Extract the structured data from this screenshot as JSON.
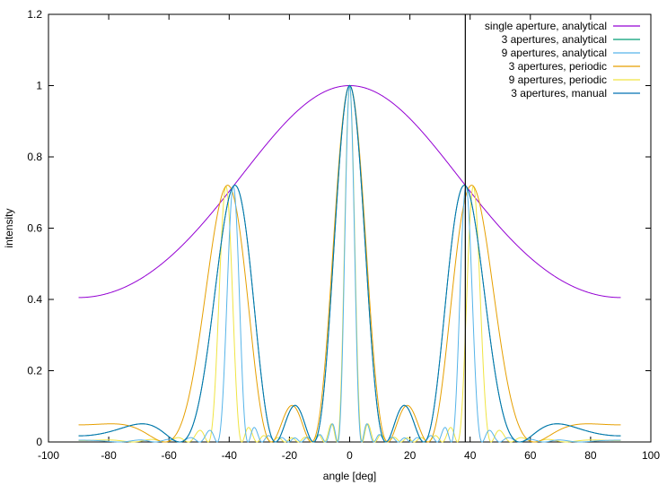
{
  "chart_data": {
    "type": "line",
    "title": "",
    "xlabel": "angle [deg]",
    "ylabel": "intensity",
    "xlim": [
      -100,
      100
    ],
    "ylim": [
      0,
      1.2
    ],
    "xticks": [
      "-100",
      "-80",
      "-60",
      "-40",
      "-20",
      "0",
      "20",
      "40",
      "60",
      "80",
      "100"
    ],
    "yticks": [
      "0",
      "0.2",
      "0.4",
      "0.6",
      "0.8",
      "1",
      "1.2"
    ],
    "grid": false,
    "legend_position": "top-right",
    "vertical_marker_x": 38.4,
    "model": {
      "aperture_width_over_wavelength": 0.5,
      "slit_spacing_over_wavelength": 1.6,
      "angle_range": [
        -90,
        90
      ]
    },
    "series": [
      {
        "name": "single aperture, analytical",
        "color": "#9400d3",
        "kind": "single"
      },
      {
        "name": "3 apertures, analytical",
        "color": "#009e73",
        "kind": "multi",
        "n": 3
      },
      {
        "name": "9 apertures, analytical",
        "color": "#56b4e9",
        "kind": "multi",
        "n": 9
      },
      {
        "name": "3 apertures, periodic",
        "color": "#e69f00",
        "kind": "periodic",
        "n": 3
      },
      {
        "name": "9 apertures, periodic",
        "color": "#f0e442",
        "kind": "periodic",
        "n": 9
      },
      {
        "name": "3 apertures, manual",
        "color": "#0072b2",
        "kind": "multi",
        "n": 3
      }
    ]
  }
}
